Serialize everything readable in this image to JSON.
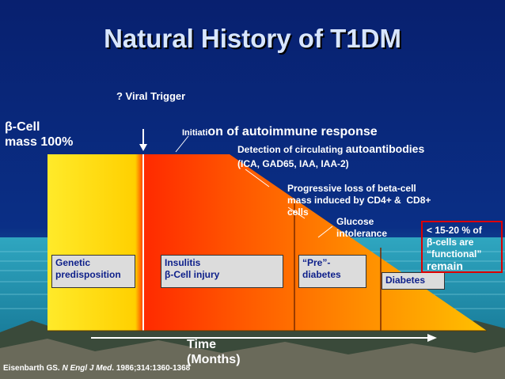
{
  "title": "Natural History of T1DM",
  "labels": {
    "viral_trigger": "? Viral Trigger",
    "beta_cell_mass": "β-Cell\nmass 100%",
    "initiation_small": "Initiati",
    "initiation_big": "on of  autoimmune response",
    "detection_small": "Detection of circulating ",
    "detection_big": "autoantibodies",
    "detection_list": "(ICA, GAD65, IAA, IAA-2)",
    "progressive": "Progressive loss of beta-cell\nmass induced by CD4+ &  CD8+\ncells",
    "glucose": "Glucose\nintolerance",
    "time": "Time\n(Months)"
  },
  "stage_boxes": [
    {
      "id": "genetic",
      "text": "Genetic\npredisposition"
    },
    {
      "id": "insulitis",
      "text": "Insulitis\nβ-Cell injury"
    },
    {
      "id": "prediabetes",
      "text": "“Pre”-\ndiabetes"
    },
    {
      "id": "diabetes",
      "text": "Diabetes"
    }
  ],
  "callout": {
    "text": "< 15-20 % of\nβ-cells are\n“functional”",
    "emphasis": "remain"
  },
  "citation": {
    "author": "Eisenbarth GS. ",
    "journal": "N Engl J Med",
    "rest": ". 1986;314:1360-1368"
  },
  "colors": {
    "background": "#0a1e6e",
    "genetic_fill": "#ffe400",
    "injury_fill": "#ff3a00",
    "diabetes_fill": "#ffb000",
    "callout_border": "#dd0000"
  }
}
